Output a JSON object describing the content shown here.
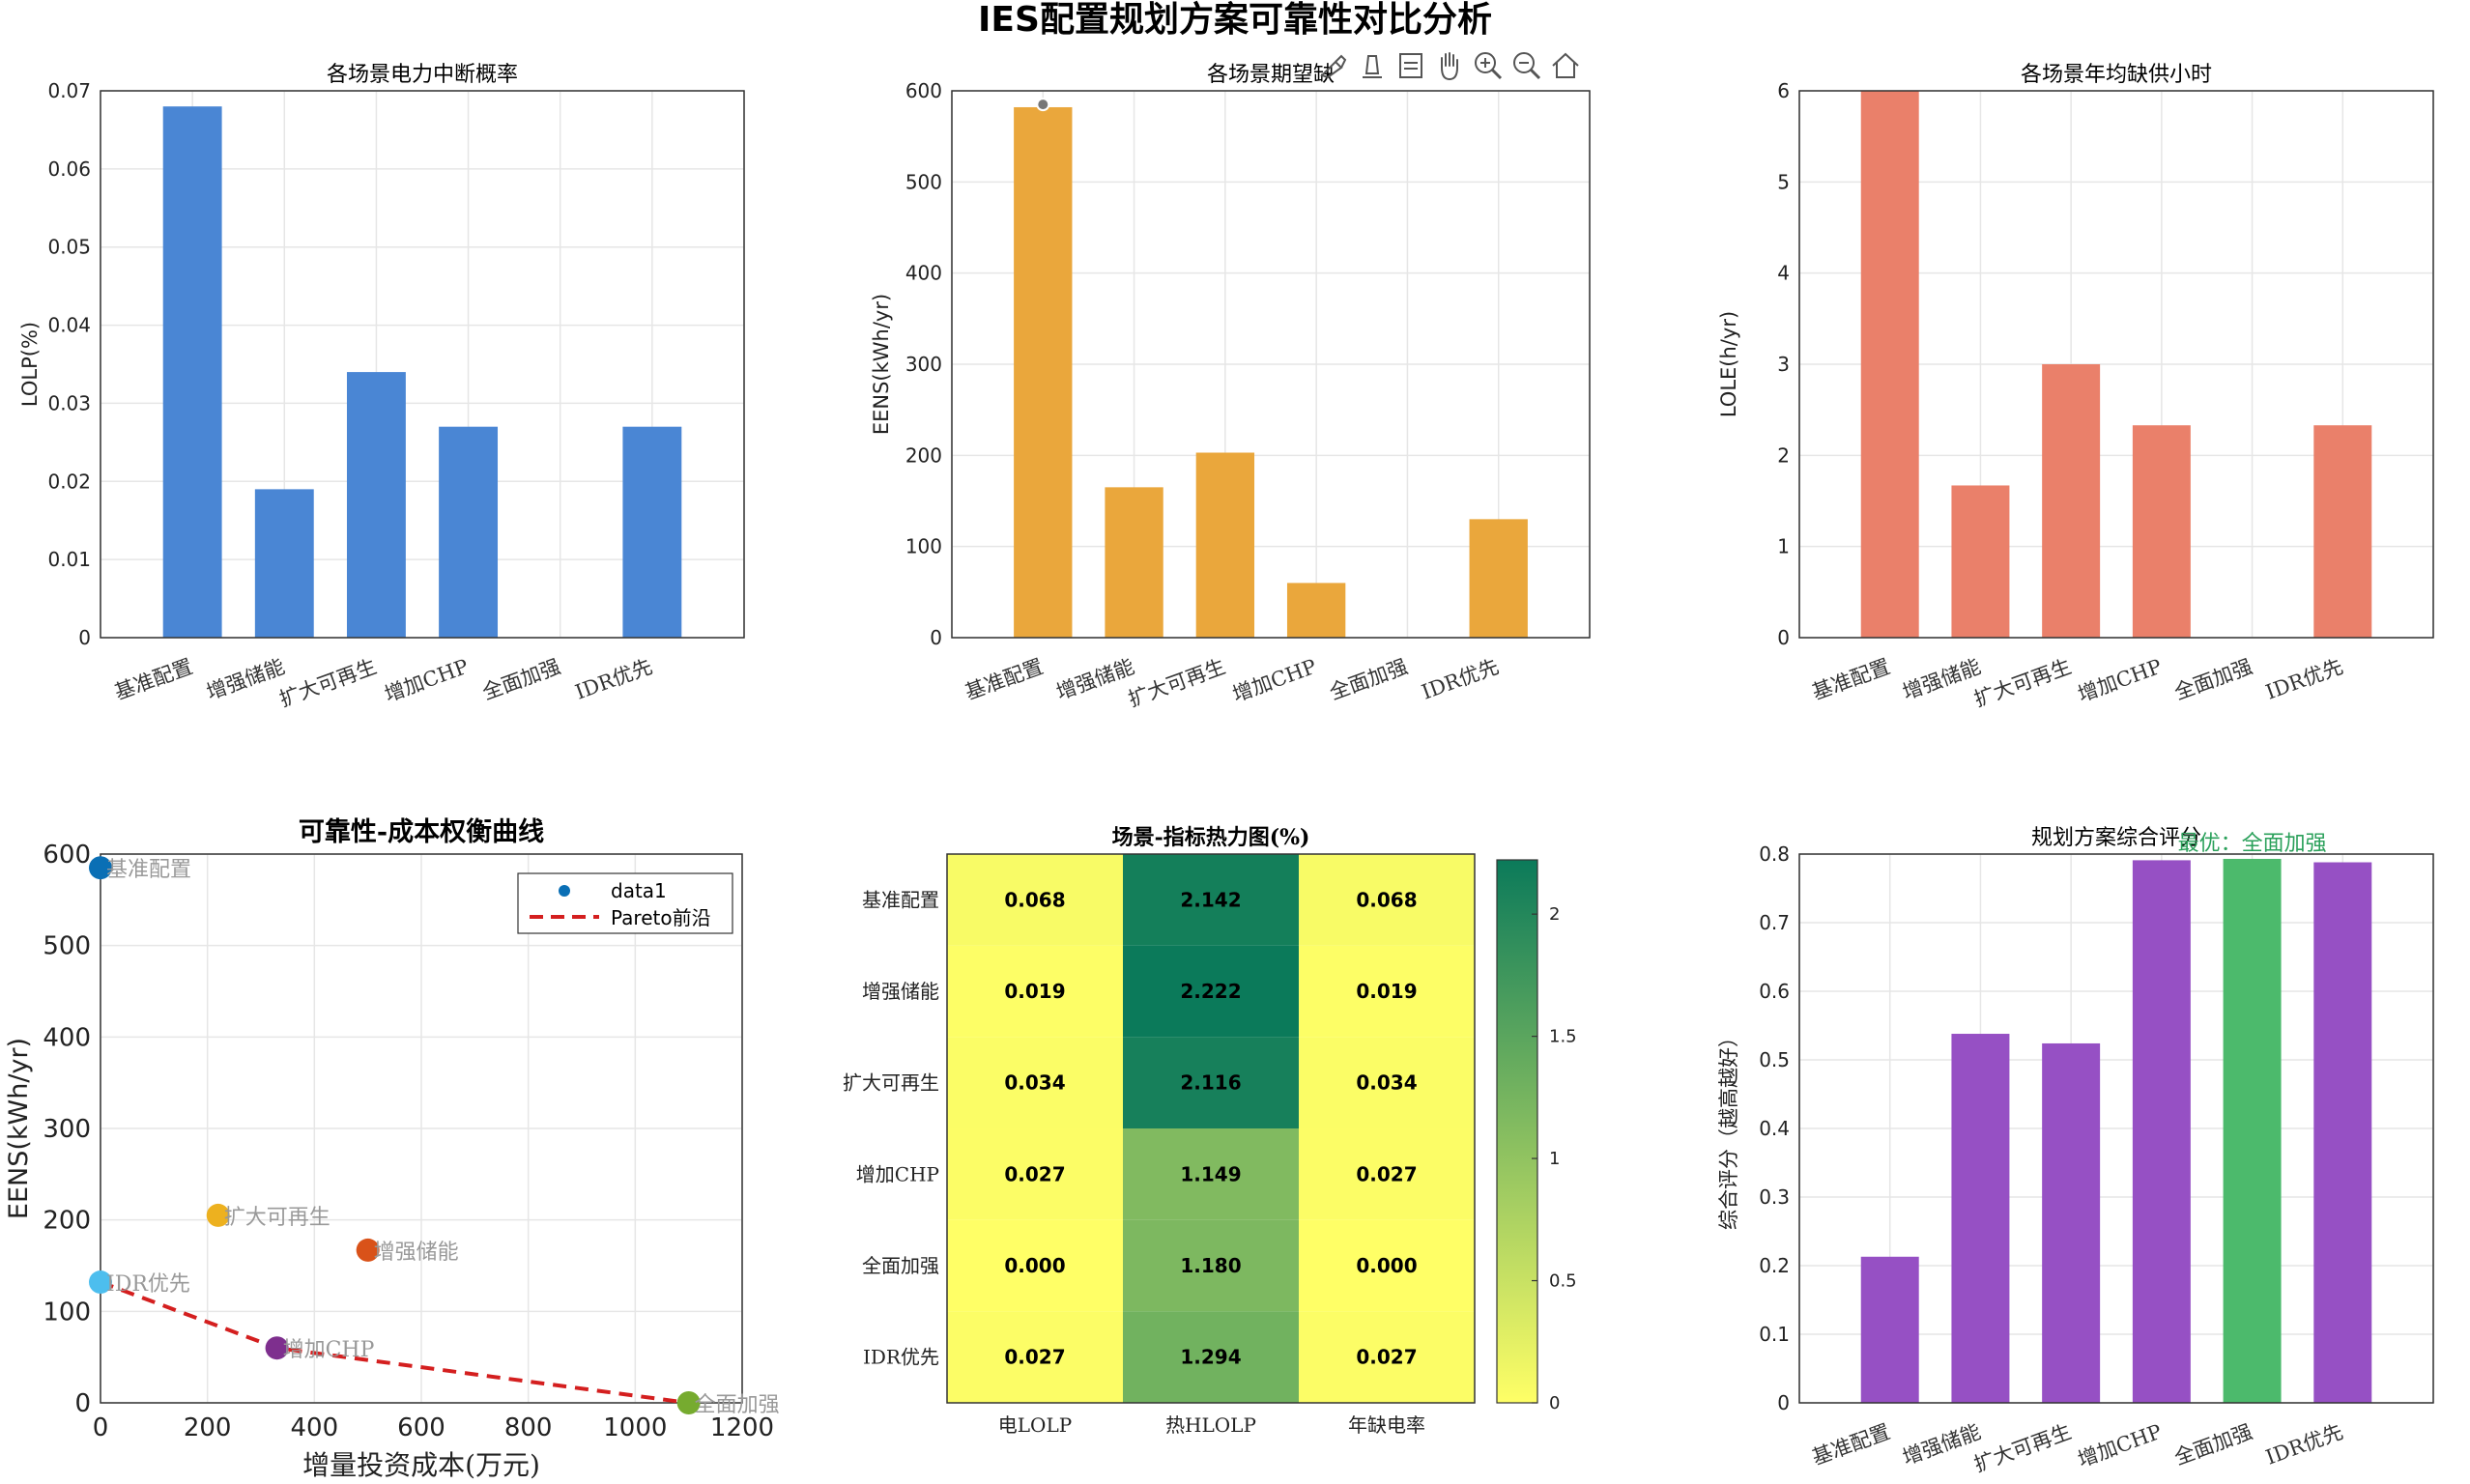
{
  "figure_title": "IES配置规划方案可靠性对比分析",
  "toolbar": {
    "icons": [
      "brush-icon",
      "data-tips-icon",
      "legend-icon",
      "pan-icon",
      "zoom-in-icon",
      "zoom-out-icon",
      "home-icon"
    ]
  },
  "colors": {
    "blue": "#4a86d4",
    "orange": "#eaa73c",
    "red": "#ea806a",
    "purple": "#9650c4",
    "green": "#4cba6c",
    "pareto": "#d41f1f",
    "best_label": "#2aa05a",
    "grid": "#e6e6e6"
  },
  "chart_data": [
    {
      "id": "lolp",
      "type": "bar",
      "title": "各场景电力中断概率",
      "xlabel": "",
      "ylabel": "LOLP(%)",
      "categories": [
        "基准配置",
        "增强储能",
        "扩大可再生",
        "增加CHP",
        "全面加强",
        "IDR优先"
      ],
      "values": [
        0.068,
        0.019,
        0.034,
        0.027,
        0.0,
        0.027
      ],
      "ylim": [
        0,
        0.07
      ],
      "yticks": [
        "0",
        "0.01",
        "0.02",
        "0.03",
        "0.04",
        "0.05",
        "0.06",
        "0.07"
      ],
      "ytick_values": [
        0,
        0.01,
        0.02,
        0.03,
        0.04,
        0.05,
        0.06,
        0.07
      ],
      "grid": true,
      "color": "#4a86d4"
    },
    {
      "id": "eens",
      "type": "bar",
      "title": "各场景期望缺",
      "xlabel": "",
      "ylabel": "EENS(kWh/yr)",
      "categories": [
        "基准配置",
        "增强储能",
        "扩大可再生",
        "增加CHP",
        "全面加强",
        "IDR优先"
      ],
      "values": [
        582,
        165,
        203,
        60,
        0,
        130
      ],
      "ylim": [
        0,
        600
      ],
      "yticks": [
        "0",
        "100",
        "200",
        "300",
        "400",
        "500",
        "600"
      ],
      "ytick_values": [
        0,
        100,
        200,
        300,
        400,
        500,
        600
      ],
      "grid": true,
      "color": "#eaa73c"
    },
    {
      "id": "lole",
      "type": "bar",
      "title": "各场景年均缺供小时",
      "xlabel": "",
      "ylabel": "LOLE(h/yr)",
      "categories": [
        "基准配置",
        "增强储能",
        "扩大可再生",
        "增加CHP",
        "全面加强",
        "IDR优先"
      ],
      "values": [
        6.0,
        1.67,
        3.0,
        2.33,
        0,
        2.33
      ],
      "ylim": [
        0,
        6
      ],
      "yticks": [
        "0",
        "1",
        "2",
        "3",
        "4",
        "5",
        "6"
      ],
      "ytick_values": [
        0,
        1,
        2,
        3,
        4,
        5,
        6
      ],
      "grid": true,
      "color": "#ea806a"
    },
    {
      "id": "tradeoff",
      "type": "scatter",
      "title": "可靠性-成本权衡曲线",
      "xlabel": "增量投资成本(万元)",
      "ylabel": "EENS(kWh/yr)",
      "xlim": [
        0,
        1200
      ],
      "ylim": [
        0,
        600
      ],
      "xticks": [
        "0",
        "200",
        "400",
        "600",
        "800",
        "1000",
        "1200"
      ],
      "xtick_values": [
        0,
        200,
        400,
        600,
        800,
        1000,
        1200
      ],
      "yticks": [
        "0",
        "100",
        "200",
        "300",
        "400",
        "500",
        "600"
      ],
      "ytick_values": [
        0,
        100,
        200,
        300,
        400,
        500,
        600
      ],
      "points": [
        {
          "label": "基准配置",
          "x": 0,
          "y": 585,
          "color": "#0a6fb5"
        },
        {
          "label": "增强储能",
          "x": 500,
          "y": 167,
          "color": "#d95219"
        },
        {
          "label": "扩大可再生",
          "x": 220,
          "y": 205,
          "color": "#edb11f"
        },
        {
          "label": "增加CHP",
          "x": 330,
          "y": 60,
          "color": "#7e2f8e"
        },
        {
          "label": "全面加强",
          "x": 1100,
          "y": 0,
          "color": "#76ab2f"
        },
        {
          "label": "IDR优先",
          "x": 0,
          "y": 132,
          "color": "#4dbeee"
        }
      ],
      "pareto": {
        "x": [
          0,
          330,
          1100
        ],
        "y": [
          132,
          60,
          0
        ]
      },
      "legend": {
        "position": "top-right",
        "entries": [
          "data1",
          "Pareto前沿"
        ]
      },
      "grid": true
    },
    {
      "id": "heatmap",
      "type": "heatmap",
      "title": "场景-指标热力图(%)",
      "rows": [
        "基准配置",
        "增强储能",
        "扩大可再生",
        "增加CHP",
        "全面加强",
        "IDR优先"
      ],
      "columns": [
        "电LOLP",
        "热HLOLP",
        "年缺电率"
      ],
      "values": [
        [
          0.068,
          2.142,
          0.068
        ],
        [
          0.019,
          2.222,
          0.019
        ],
        [
          0.034,
          2.116,
          0.034
        ],
        [
          0.027,
          1.149,
          0.027
        ],
        [
          0.0,
          1.18,
          0.0
        ],
        [
          0.027,
          1.294,
          0.027
        ]
      ],
      "cell_labels": [
        [
          "0.068",
          "2.142",
          "0.068"
        ],
        [
          "0.019",
          "2.222",
          "0.019"
        ],
        [
          "0.034",
          "2.116",
          "0.034"
        ],
        [
          "0.027",
          "1.149",
          "0.027"
        ],
        [
          "0.000",
          "1.180",
          "0.000"
        ],
        [
          "0.027",
          "1.294",
          "0.027"
        ]
      ],
      "colorbar": {
        "min": 0,
        "max": 2.222,
        "ticks": [
          "0",
          "0.5",
          "1",
          "1.5",
          "2"
        ],
        "tick_values": [
          0,
          0.5,
          1,
          1.5,
          2
        ],
        "colormap": [
          "#ffff66",
          "#0b7a5a"
        ]
      }
    },
    {
      "id": "score",
      "type": "bar",
      "title": "规划方案综合评分",
      "xlabel": "",
      "ylabel": "综合评分（越高越好）",
      "categories": [
        "基准配置",
        "增强储能",
        "扩大可再生",
        "增加CHP",
        "全面加强",
        "IDR优先"
      ],
      "values": [
        0.213,
        0.538,
        0.524,
        0.791,
        0.793,
        0.788
      ],
      "highlight_index": 4,
      "annotation": "最优：全面加强",
      "ylim": [
        0,
        0.8
      ],
      "yticks": [
        "0",
        "0.1",
        "0.2",
        "0.3",
        "0.4",
        "0.5",
        "0.6",
        "0.7",
        "0.8"
      ],
      "ytick_values": [
        0,
        0.1,
        0.2,
        0.3,
        0.4,
        0.5,
        0.6,
        0.7,
        0.8
      ],
      "grid": true,
      "color": "#9650c4",
      "highlight_color": "#4cba6c"
    }
  ]
}
